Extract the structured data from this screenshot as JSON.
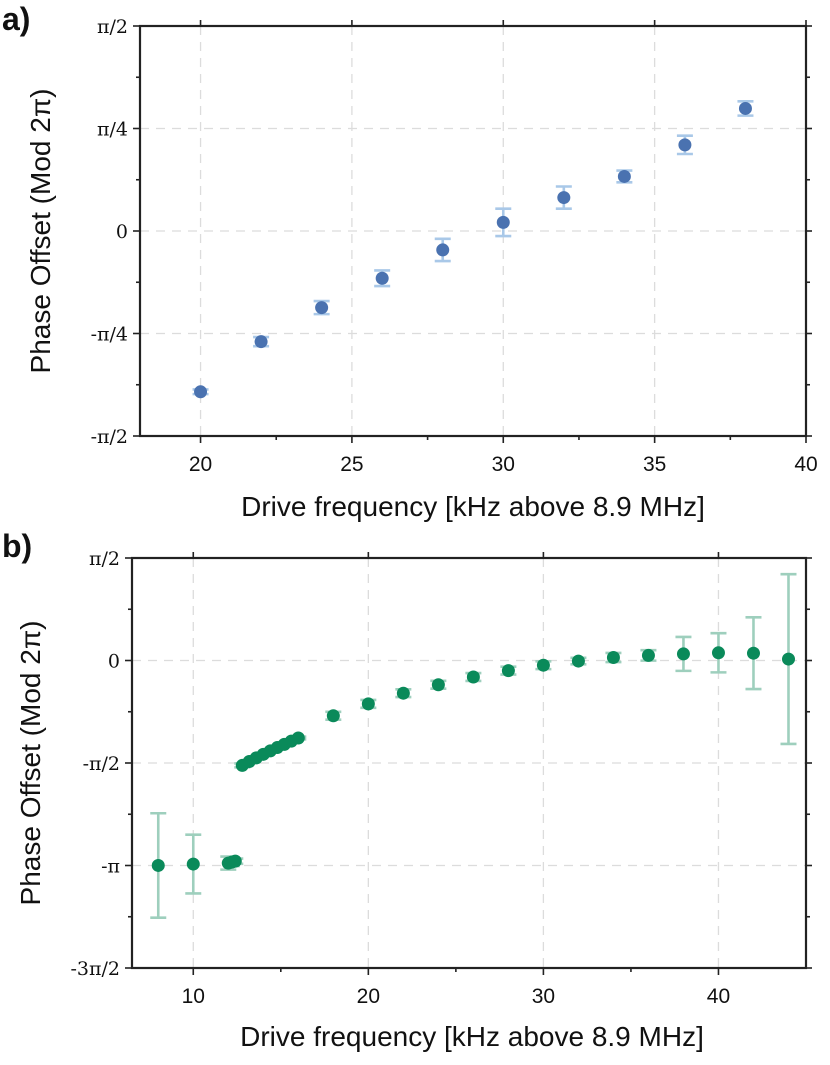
{
  "chart_data": [
    {
      "type": "scatter",
      "panel_label": "a)",
      "xlabel": "Drive frequency [kHz above 8.9 MHz]",
      "ylabel": "Phase Offset (Mod 2π)",
      "xlim": [
        18,
        40
      ],
      "ylim": [
        -1.5708,
        1.5708
      ],
      "grid": true,
      "x_ticks": [
        20,
        25,
        30,
        35,
        40
      ],
      "x_tick_labels": [
        "20",
        "25",
        "30",
        "35",
        "40"
      ],
      "y_ticks": [
        -1.5708,
        -0.7854,
        0,
        0.7854,
        1.5708
      ],
      "y_tick_labels": [
        "-π/2",
        "-π/4",
        "0",
        "π/4",
        "π/2"
      ],
      "marker_color": "#4a72b0",
      "errorbar_color": "#a9c8e8",
      "series": [
        {
          "name": "phase",
          "x": [
            20,
            22,
            24,
            26,
            28,
            30,
            32,
            34,
            36,
            38
          ],
          "y": [
            -1.232,
            -0.848,
            -0.587,
            -0.362,
            -0.145,
            0.066,
            0.256,
            0.418,
            0.66,
            0.939
          ],
          "yerr": [
            0.018,
            0.035,
            0.05,
            0.06,
            0.085,
            0.105,
            0.085,
            0.045,
            0.07,
            0.055
          ]
        }
      ]
    },
    {
      "type": "scatter",
      "panel_label": "b)",
      "xlabel": "Drive frequency [kHz above 8.9 MHz]",
      "ylabel": "Phase Offset (Mod 2π)",
      "xlim": [
        6.5,
        45
      ],
      "ylim": [
        -4.7124,
        1.5708
      ],
      "grid": true,
      "x_ticks": [
        10,
        20,
        30,
        40
      ],
      "x_tick_labels": [
        "10",
        "20",
        "30",
        "40"
      ],
      "y_ticks": [
        -4.7124,
        -3.1416,
        -1.5708,
        0,
        1.5708
      ],
      "y_tick_labels": [
        "-3π/2",
        "-π",
        "-π/2",
        "0",
        "π/2"
      ],
      "marker_color": "#0a8a5a",
      "errorbar_color": "#9ecfbd",
      "series": [
        {
          "name": "phase",
          "x": [
            8,
            10,
            12,
            12.2,
            12.4,
            12.8,
            13.2,
            13.6,
            14.0,
            14.4,
            14.8,
            15.2,
            15.6,
            16.0,
            18,
            20,
            22,
            24,
            26,
            28,
            30,
            32,
            34,
            36,
            38,
            40,
            42,
            44
          ],
          "y": [
            -3.141,
            -3.12,
            -3.105,
            -3.09,
            -3.075,
            -1.608,
            -1.548,
            -1.492,
            -1.438,
            -1.385,
            -1.334,
            -1.285,
            -1.236,
            -1.188,
            -0.847,
            -0.665,
            -0.501,
            -0.372,
            -0.253,
            -0.155,
            -0.072,
            -0.009,
            0.046,
            0.078,
            0.101,
            0.118,
            0.112,
            0.022
          ],
          "yerr": [
            0.8,
            0.45,
            0.1,
            0.06,
            0.04,
            0.03,
            0.02,
            0.02,
            0.02,
            0.02,
            0.02,
            0.02,
            0.02,
            0.02,
            0.06,
            0.06,
            0.06,
            0.06,
            0.06,
            0.06,
            0.06,
            0.05,
            0.07,
            0.08,
            0.26,
            0.3,
            0.55,
            1.3
          ]
        }
      ]
    }
  ]
}
